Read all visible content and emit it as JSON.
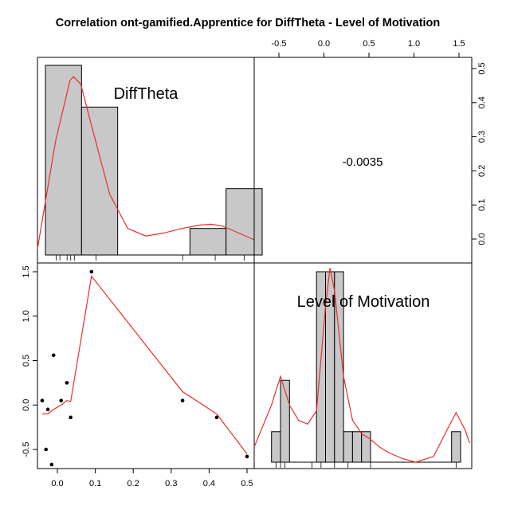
{
  "chart_data": [
    {
      "panel": "top-left",
      "type": "bar",
      "label": "DiffTheta",
      "bins": [
        {
          "from": -0.05,
          "to": 0.05,
          "height": 0.5
        },
        {
          "from": 0.05,
          "to": 0.15,
          "height": 0.39
        },
        {
          "from": 0.15,
          "to": 0.25,
          "height": 0.0
        },
        {
          "from": 0.25,
          "to": 0.35,
          "height": 0.0
        },
        {
          "from": 0.35,
          "to": 0.45,
          "height": 0.07
        },
        {
          "from": 0.45,
          "to": 0.55,
          "height": 0.175
        }
      ],
      "rug": [
        -0.02,
        -0.01,
        0.01,
        0.02,
        0.03,
        0.09,
        0.33,
        0.42,
        0.5
      ],
      "density": [
        [
          -0.05,
          0.016
        ],
        [
          0.0,
          0.3
        ],
        [
          0.04,
          0.46
        ],
        [
          0.05,
          0.47
        ],
        [
          0.07,
          0.45
        ],
        [
          0.1,
          0.34
        ],
        [
          0.15,
          0.16
        ],
        [
          0.2,
          0.07
        ],
        [
          0.25,
          0.05
        ],
        [
          0.3,
          0.058
        ],
        [
          0.35,
          0.07
        ],
        [
          0.4,
          0.079
        ],
        [
          0.43,
          0.081
        ],
        [
          0.46,
          0.077
        ],
        [
          0.5,
          0.061
        ],
        [
          0.55,
          0.04
        ]
      ],
      "x_range": [
        -0.05,
        0.55
      ],
      "y_range": [
        0,
        0.5
      ],
      "right_axis_ticks": [
        "0.0",
        "0.1",
        "0.2",
        "0.3",
        "0.4",
        "0.5"
      ]
    },
    {
      "panel": "top-right",
      "type": "table",
      "correlation": "-0.0035",
      "top_axis_ticks": [
        "-0.5",
        "0.0",
        "0.5",
        "1.0",
        "1.5"
      ]
    },
    {
      "panel": "bottom-left",
      "type": "scatter",
      "points": [
        [
          -0.04,
          0.05
        ],
        [
          -0.025,
          -0.05
        ],
        [
          -0.01,
          0.56
        ],
        [
          -0.03,
          -0.5
        ],
        [
          -0.015,
          -0.67
        ],
        [
          0.01,
          0.05
        ],
        [
          0.025,
          0.25
        ],
        [
          0.035,
          -0.14
        ],
        [
          0.09,
          1.5
        ],
        [
          0.33,
          0.05
        ],
        [
          0.42,
          -0.14
        ],
        [
          0.5,
          -0.58
        ]
      ],
      "smooth": [
        [
          -0.04,
          -0.1
        ],
        [
          -0.025,
          -0.1
        ],
        [
          -0.01,
          -0.05
        ],
        [
          0.01,
          0.0
        ],
        [
          0.025,
          0.05
        ],
        [
          0.035,
          0.04
        ],
        [
          0.09,
          1.45
        ],
        [
          0.33,
          0.15
        ],
        [
          0.42,
          -0.1
        ],
        [
          0.5,
          -0.55
        ]
      ],
      "x_range": [
        -0.05,
        0.51
      ],
      "y_range": [
        -0.72,
        1.58
      ],
      "bottom_axis_ticks": [
        "0.0",
        "0.1",
        "0.2",
        "0.3",
        "0.4",
        "0.5"
      ],
      "left_axis_ticks": [
        "-0.5",
        "0.0",
        "0.5",
        "1.0",
        "1.5"
      ]
    },
    {
      "panel": "bottom-right",
      "type": "bar",
      "label": "Level of Motivation",
      "bins": [
        {
          "from": -0.6,
          "to": -0.5,
          "height": 0.16
        },
        {
          "from": -0.5,
          "to": -0.4,
          "height": 0.43
        },
        {
          "from": -0.4,
          "to": -0.3,
          "height": 0.0
        },
        {
          "from": -0.3,
          "to": -0.2,
          "height": 0.0
        },
        {
          "from": -0.2,
          "to": -0.1,
          "height": 0.0
        },
        {
          "from": -0.1,
          "to": 0.0,
          "height": 1.0
        },
        {
          "from": 0.0,
          "to": 0.1,
          "height": 1.0
        },
        {
          "from": 0.1,
          "to": 0.2,
          "height": 1.0
        },
        {
          "from": 0.2,
          "to": 0.3,
          "height": 0.16
        },
        {
          "from": 0.3,
          "to": 0.4,
          "height": 0.16
        },
        {
          "from": 0.4,
          "to": 0.5,
          "height": 0.16
        },
        {
          "from": 0.5,
          "to": 1.4,
          "height": 0.0
        },
        {
          "from": 1.4,
          "to": 1.5,
          "height": 0.16
        }
      ],
      "rug": [
        -0.55,
        -0.5,
        -0.45,
        -0.15,
        -0.05,
        0.1,
        0.25,
        0.5,
        1.45
      ],
      "density": [
        [
          -0.8,
          0.08
        ],
        [
          -0.6,
          0.3
        ],
        [
          -0.5,
          0.45
        ],
        [
          -0.4,
          0.3
        ],
        [
          -0.3,
          0.22
        ],
        [
          -0.2,
          0.2
        ],
        [
          -0.1,
          0.27
        ],
        [
          0.0,
          0.82
        ],
        [
          0.05,
          1.02
        ],
        [
          0.1,
          0.9
        ],
        [
          0.2,
          0.45
        ],
        [
          0.3,
          0.22
        ],
        [
          0.4,
          0.15
        ],
        [
          0.5,
          0.12
        ],
        [
          0.6,
          0.08
        ],
        [
          0.7,
          0.05
        ],
        [
          0.85,
          0.02
        ],
        [
          1.0,
          0.0
        ],
        [
          1.2,
          0.03
        ],
        [
          1.35,
          0.17
        ],
        [
          1.45,
          0.26
        ],
        [
          1.55,
          0.17
        ],
        [
          1.6,
          0.1
        ]
      ],
      "x_range": [
        -0.8,
        1.6
      ],
      "y_range": [
        0,
        1.0
      ]
    }
  ],
  "title": "Correlation ont-gamified.Apprentice for DiffTheta - Level of Motivation",
  "colors": {
    "bar_fill": "#c8c8c8",
    "curve": "#e8302a",
    "point": "#000000",
    "frame": "#000000"
  }
}
